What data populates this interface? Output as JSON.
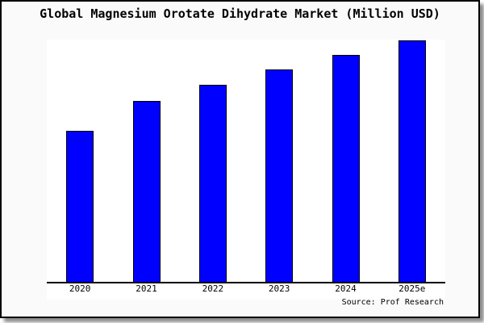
{
  "page": {
    "background": "#ffffff"
  },
  "card": {
    "background": "#fafafa",
    "border_color": "#000000",
    "shadow_color": "#737373",
    "plot_background": "#ffffff",
    "axis_color": "#000000"
  },
  "chart_data": {
    "type": "bar",
    "title": "Global Magnesium Orotate Dihydrate Market (Million USD)",
    "categories": [
      "2020",
      "2021",
      "2022",
      "2023",
      "2024",
      "2025e"
    ],
    "values": [
      62.7,
      75,
      81.7,
      88,
      94,
      100
    ],
    "value_scale_note": "no y-axis ticks shown; values are relative bar heights with 2025e = 100",
    "xlabel": "",
    "ylabel": "",
    "ylim": [
      0,
      105
    ],
    "grid": false,
    "legend_position": "none",
    "bar_color": "#0000ff",
    "bar_border_color": "#000000",
    "source": "Source: Prof Research"
  }
}
